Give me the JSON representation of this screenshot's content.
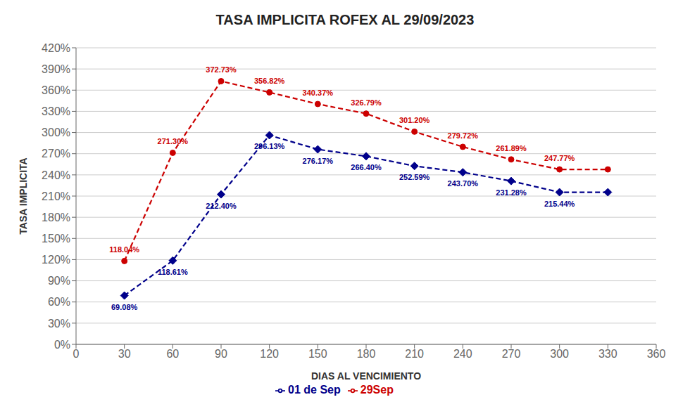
{
  "chart_data": {
    "type": "line",
    "title": "TASA IMPLICITA ROFEX AL 29/09/2023",
    "xlabel": "DIAS AL VENCIMIENTO",
    "ylabel": "TASA IMPLICITA",
    "x": [
      30,
      60,
      90,
      120,
      150,
      180,
      210,
      240,
      270,
      300,
      330
    ],
    "series": [
      {
        "name": "29Sep",
        "color": "#cc0000",
        "line_style": "dashed",
        "marker": "circle",
        "values": [
          118.04,
          271.3,
          372.73,
          356.82,
          340.37,
          326.79,
          301.2,
          279.72,
          261.89,
          247.77,
          247.77
        ],
        "value_labels": [
          "118.04%",
          "271.30%",
          "372.73%",
          "356.82%",
          "340.37%",
          "326.79%",
          "301.20%",
          "279.72%",
          "261.89%",
          "247.77%",
          null
        ]
      },
      {
        "name": "01 de Sep",
        "color": "#00008B",
        "line_style": "dashed",
        "marker": "diamond",
        "values": [
          69.08,
          118.61,
          212.4,
          296.13,
          276.17,
          266.4,
          252.59,
          243.7,
          231.28,
          215.44,
          215.44
        ],
        "value_labels": [
          "69.08%",
          "118.61%",
          "212.40%",
          "296.13%",
          "276.17%",
          "266.40%",
          "252.59%",
          "243.70%",
          "231.28%",
          "215.44%",
          null
        ]
      }
    ],
    "xlim": [
      0,
      360
    ],
    "xticks": [
      0,
      30,
      60,
      90,
      120,
      150,
      180,
      210,
      240,
      270,
      300,
      330,
      360
    ],
    "ylim": [
      0,
      420
    ],
    "yticks": [
      {
        "value": 0,
        "label": "0%"
      },
      {
        "value": 30,
        "label": "30%"
      },
      {
        "value": 60,
        "label": "60%"
      },
      {
        "value": 90,
        "label": "90%"
      },
      {
        "value": 120,
        "label": "120%"
      },
      {
        "value": 150,
        "label": "150%"
      },
      {
        "value": 180,
        "label": "180%"
      },
      {
        "value": 210,
        "label": "210%"
      },
      {
        "value": 240,
        "label": "240%"
      },
      {
        "value": 270,
        "label": "270%"
      },
      {
        "value": 300,
        "label": "300%"
      },
      {
        "value": 330,
        "label": "330%"
      },
      {
        "value": 360,
        "label": "360%"
      },
      {
        "value": 390,
        "label": "390%"
      },
      {
        "value": 420,
        "label": "420%"
      }
    ],
    "grid": "y",
    "legend": "bottom",
    "data_labels": true
  }
}
